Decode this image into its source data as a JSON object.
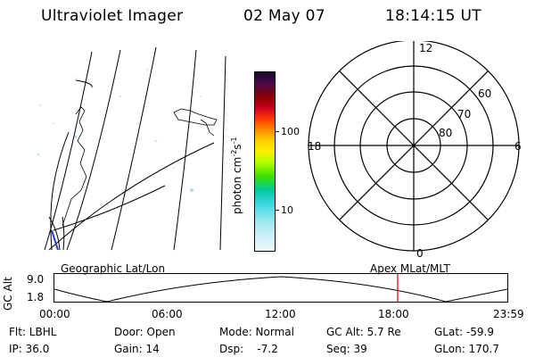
{
  "header": {
    "title": "Ultraviolet Imager",
    "date": "02 May 07",
    "time": "18:14:15 UT"
  },
  "colorbar": {
    "label_parts": [
      "photon cm",
      "-2",
      "s",
      "-1"
    ],
    "ticks": [
      "100",
      "10"
    ],
    "colors": [
      "#1a0a2e",
      "#4a0a4a",
      "#8b0000",
      "#c8001e",
      "#ff3a00",
      "#ff8800",
      "#ffcc00",
      "#ffee00",
      "#b8ff00",
      "#40e000",
      "#00c8a0",
      "#40d8e0",
      "#a0e8f0",
      "#d0f0f8",
      "#eef8fc"
    ]
  },
  "polar": {
    "mlt_labels": {
      "top": "12",
      "left": "18",
      "right": "6",
      "bottom": "0"
    },
    "lat_labels": [
      "60",
      "70",
      "80"
    ]
  },
  "timeline": {
    "left_label": "Geographic Lat/Lon",
    "right_label": "Apex MLat/MLT",
    "y_axis_title": "GC Alt",
    "y_ticks": [
      "9.0",
      "1.8"
    ],
    "x_ticks": [
      "00:00",
      "06:00",
      "12:00",
      "18:00",
      "23:59"
    ],
    "marker_color": "#cc0000"
  },
  "status": {
    "flt": "Flt: LBHL",
    "door": "Door: Open",
    "mode": "Mode: Normal",
    "gc_alt": "GC Alt: 5.7 Re",
    "glat": "GLat: -59.9",
    "ip": "IP: 36.0",
    "gain": "Gain: 14",
    "dsp": "Dsp:    -7.2",
    "seq": "Seq: 39",
    "glon": "GLon: 170.7"
  }
}
